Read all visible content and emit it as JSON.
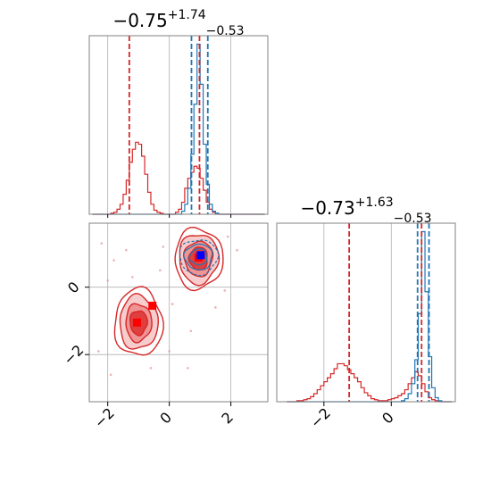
{
  "chart_data": {
    "type": "corner",
    "colors": {
      "red": "#d62728",
      "blue": "#1f77b4",
      "grid": "#b0b0b0",
      "pink_fill": "#f2a7a7",
      "red_fill": "#e03a3a"
    },
    "titles": [
      {
        "panel": "top-left",
        "main": "−0.75",
        "upper": "+1.74",
        "lower": "−0.53"
      },
      {
        "panel": "bottom-right",
        "main": "−0.73",
        "upper": "+1.63",
        "lower": "−0.53"
      }
    ],
    "marginal_x": {
      "xlim": [
        -2.6,
        3.2
      ],
      "ticks": [
        -2,
        0,
        2
      ],
      "tick_labels": [
        "−2",
        "0",
        "2"
      ],
      "red_dashed_lines": [
        -1.3,
        0.98
      ],
      "blue_dashed_lines": [
        0.72,
        1.25
      ],
      "red_hist": {
        "edges": [
          -2.5,
          -2.4,
          -2.3,
          -2.2,
          -2.1,
          -2.0,
          -1.9,
          -1.8,
          -1.7,
          -1.6,
          -1.5,
          -1.4,
          -1.3,
          -1.2,
          -1.1,
          -1.0,
          -0.9,
          -0.8,
          -0.7,
          -0.6,
          -0.5,
          -0.4,
          -0.3,
          -0.2,
          -0.1,
          0.0,
          0.1,
          0.2,
          0.3,
          0.4,
          0.5,
          0.6,
          0.7,
          0.8,
          0.9,
          1.0,
          1.1,
          1.2,
          1.3,
          1.4,
          1.5,
          1.6,
          1.7,
          1.8,
          1.9,
          2.0,
          2.1,
          2.2,
          2.3,
          2.4,
          2.5,
          2.6,
          2.7,
          2.8,
          2.9,
          3.0,
          3.1
        ],
        "counts": [
          0,
          0,
          0,
          0,
          0,
          0,
          1,
          2,
          5,
          10,
          20,
          34,
          52,
          65,
          72,
          70,
          58,
          40,
          22,
          10,
          4,
          2,
          1,
          0,
          0,
          0,
          0,
          2,
          5,
          12,
          26,
          36,
          42,
          48,
          46,
          36,
          24,
          12,
          5,
          2,
          1,
          0,
          0,
          0,
          0,
          0,
          0,
          0,
          0,
          0,
          0,
          0,
          0,
          0,
          0,
          0
        ]
      },
      "blue_hist": {
        "edges": [
          -2.5,
          -2.4,
          -2.3,
          -2.2,
          -2.1,
          -2.0,
          -1.9,
          -1.8,
          -1.7,
          -1.6,
          -1.5,
          -1.4,
          -1.3,
          -1.2,
          -1.1,
          -1.0,
          -0.9,
          -0.8,
          -0.7,
          -0.6,
          -0.5,
          -0.4,
          -0.3,
          -0.2,
          -0.1,
          0.0,
          0.1,
          0.2,
          0.3,
          0.4,
          0.5,
          0.6,
          0.7,
          0.8,
          0.9,
          1.0,
          1.1,
          1.2,
          1.3,
          1.4,
          1.5,
          1.6,
          1.7,
          1.8,
          1.9,
          2.0,
          2.1,
          2.2,
          2.3,
          2.4,
          2.5,
          2.6,
          2.7,
          2.8,
          2.9,
          3.0,
          3.1
        ],
        "counts": [
          0,
          0,
          0,
          0,
          0,
          0,
          0,
          0,
          0,
          0,
          0,
          0,
          0,
          0,
          0,
          0,
          0,
          0,
          0,
          0,
          0,
          0,
          0,
          0,
          0,
          0,
          0,
          0,
          0,
          3,
          10,
          26,
          60,
          110,
          170,
          130,
          70,
          30,
          10,
          3,
          1,
          0,
          0,
          0,
          0,
          0,
          0,
          0,
          0,
          0,
          0,
          0,
          0,
          0,
          0,
          0
        ]
      }
    },
    "joint": {
      "xlim": [
        -2.6,
        3.2
      ],
      "ylim": [
        -3.4,
        1.9
      ],
      "xticks": [
        -2,
        0,
        2
      ],
      "xtick_labels": [
        "−2",
        "0",
        "2"
      ],
      "yticks": [
        -2,
        0
      ],
      "ytick_labels": [
        "−2",
        "0"
      ],
      "red_clusters": [
        {
          "cx": -1.0,
          "cy": -1.05,
          "rx": [
            0.78,
            0.62,
            0.42,
            0.28
          ],
          "ry": [
            1.0,
            0.8,
            0.56,
            0.36
          ]
        },
        {
          "cx": 0.95,
          "cy": 0.85,
          "rx": [
            0.78,
            0.64,
            0.46,
            0.3
          ],
          "ry": [
            0.9,
            0.74,
            0.52,
            0.34
          ]
        }
      ],
      "blue_cluster": {
        "cx": 0.95,
        "cy": 0.9,
        "rx": [
          0.62,
          0.45,
          0.28
        ],
        "ry": [
          0.52,
          0.38,
          0.24
        ]
      },
      "markers": [
        {
          "x": -1.05,
          "y": -1.05,
          "color": "red"
        },
        {
          "x": -0.55,
          "y": -0.55,
          "color": "red"
        },
        {
          "x": 0.95,
          "y": 0.88,
          "color": "red"
        },
        {
          "x": 1.02,
          "y": 0.95,
          "color": "blue"
        }
      ],
      "scatter": [
        [
          -2.2,
          1.3
        ],
        [
          -1.8,
          0.8
        ],
        [
          -1.4,
          1.1
        ],
        [
          -0.3,
          0.5
        ],
        [
          0.1,
          -0.5
        ],
        [
          -0.6,
          -2.4
        ],
        [
          -1.9,
          -2.6
        ],
        [
          0.6,
          -2.4
        ],
        [
          1.8,
          -0.1
        ],
        [
          -2.3,
          -1.9
        ],
        [
          0.0,
          -1.9
        ],
        [
          -1.2,
          0.3
        ],
        [
          1.9,
          1.5
        ],
        [
          -0.2,
          1.2
        ],
        [
          0.7,
          -1.3
        ],
        [
          2.2,
          1.1
        ],
        [
          -2.0,
          0.2
        ],
        [
          1.5,
          -0.6
        ]
      ]
    },
    "marginal_y": {
      "xlim": [
        -3.4,
        1.9
      ],
      "ticks": [
        -2,
        0
      ],
      "tick_labels": [
        "−2",
        "0"
      ],
      "red_dashed_lines": [
        -1.25,
        0.9
      ],
      "blue_dashed_lines": [
        0.78,
        1.12
      ],
      "red_hist": {
        "edges": [
          -3.1,
          -3.0,
          -2.9,
          -2.8,
          -2.7,
          -2.6,
          -2.5,
          -2.4,
          -2.3,
          -2.2,
          -2.1,
          -2.0,
          -1.9,
          -1.8,
          -1.7,
          -1.6,
          -1.5,
          -1.4,
          -1.3,
          -1.2,
          -1.1,
          -1.0,
          -0.9,
          -0.8,
          -0.7,
          -0.6,
          -0.5,
          -0.4,
          -0.3,
          -0.2,
          -0.1,
          0.0,
          0.1,
          0.2,
          0.3,
          0.4,
          0.5,
          0.6,
          0.7,
          0.8,
          0.9,
          1.0,
          1.1,
          1.2,
          1.3,
          1.4,
          1.5,
          1.6,
          1.7,
          1.8
        ],
        "counts": [
          0,
          0,
          0,
          1,
          1,
          2,
          3,
          5,
          8,
          12,
          16,
          20,
          24,
          28,
          33,
          38,
          38,
          36,
          32,
          28,
          24,
          20,
          14,
          9,
          6,
          3,
          2,
          1,
          1,
          1,
          2,
          3,
          4,
          6,
          8,
          12,
          18,
          24,
          30,
          26,
          18,
          10,
          4,
          2,
          1,
          0,
          0,
          0,
          0
        ]
      },
      "blue_hist": {
        "edges": [
          -3.1,
          -3.0,
          -2.9,
          -2.8,
          -2.7,
          -2.6,
          -2.5,
          -2.4,
          -2.3,
          -2.2,
          -2.1,
          -2.0,
          -1.9,
          -1.8,
          -1.7,
          -1.6,
          -1.5,
          -1.4,
          -1.3,
          -1.2,
          -1.1,
          -1.0,
          -0.9,
          -0.8,
          -0.7,
          -0.6,
          -0.5,
          -0.4,
          -0.3,
          -0.2,
          -0.1,
          0.0,
          0.1,
          0.2,
          0.3,
          0.4,
          0.5,
          0.6,
          0.7,
          0.8,
          0.9,
          1.0,
          1.1,
          1.2,
          1.3,
          1.4,
          1.5,
          1.6,
          1.7,
          1.8
        ],
        "counts": [
          0,
          0,
          0,
          0,
          0,
          0,
          0,
          0,
          0,
          0,
          0,
          0,
          0,
          0,
          0,
          0,
          0,
          0,
          0,
          0,
          0,
          0,
          0,
          0,
          0,
          0,
          0,
          0,
          0,
          0,
          0,
          0,
          0,
          0,
          1,
          3,
          8,
          18,
          42,
          88,
          170,
          110,
          45,
          14,
          4,
          1,
          0,
          0,
          0
        ]
      }
    }
  }
}
